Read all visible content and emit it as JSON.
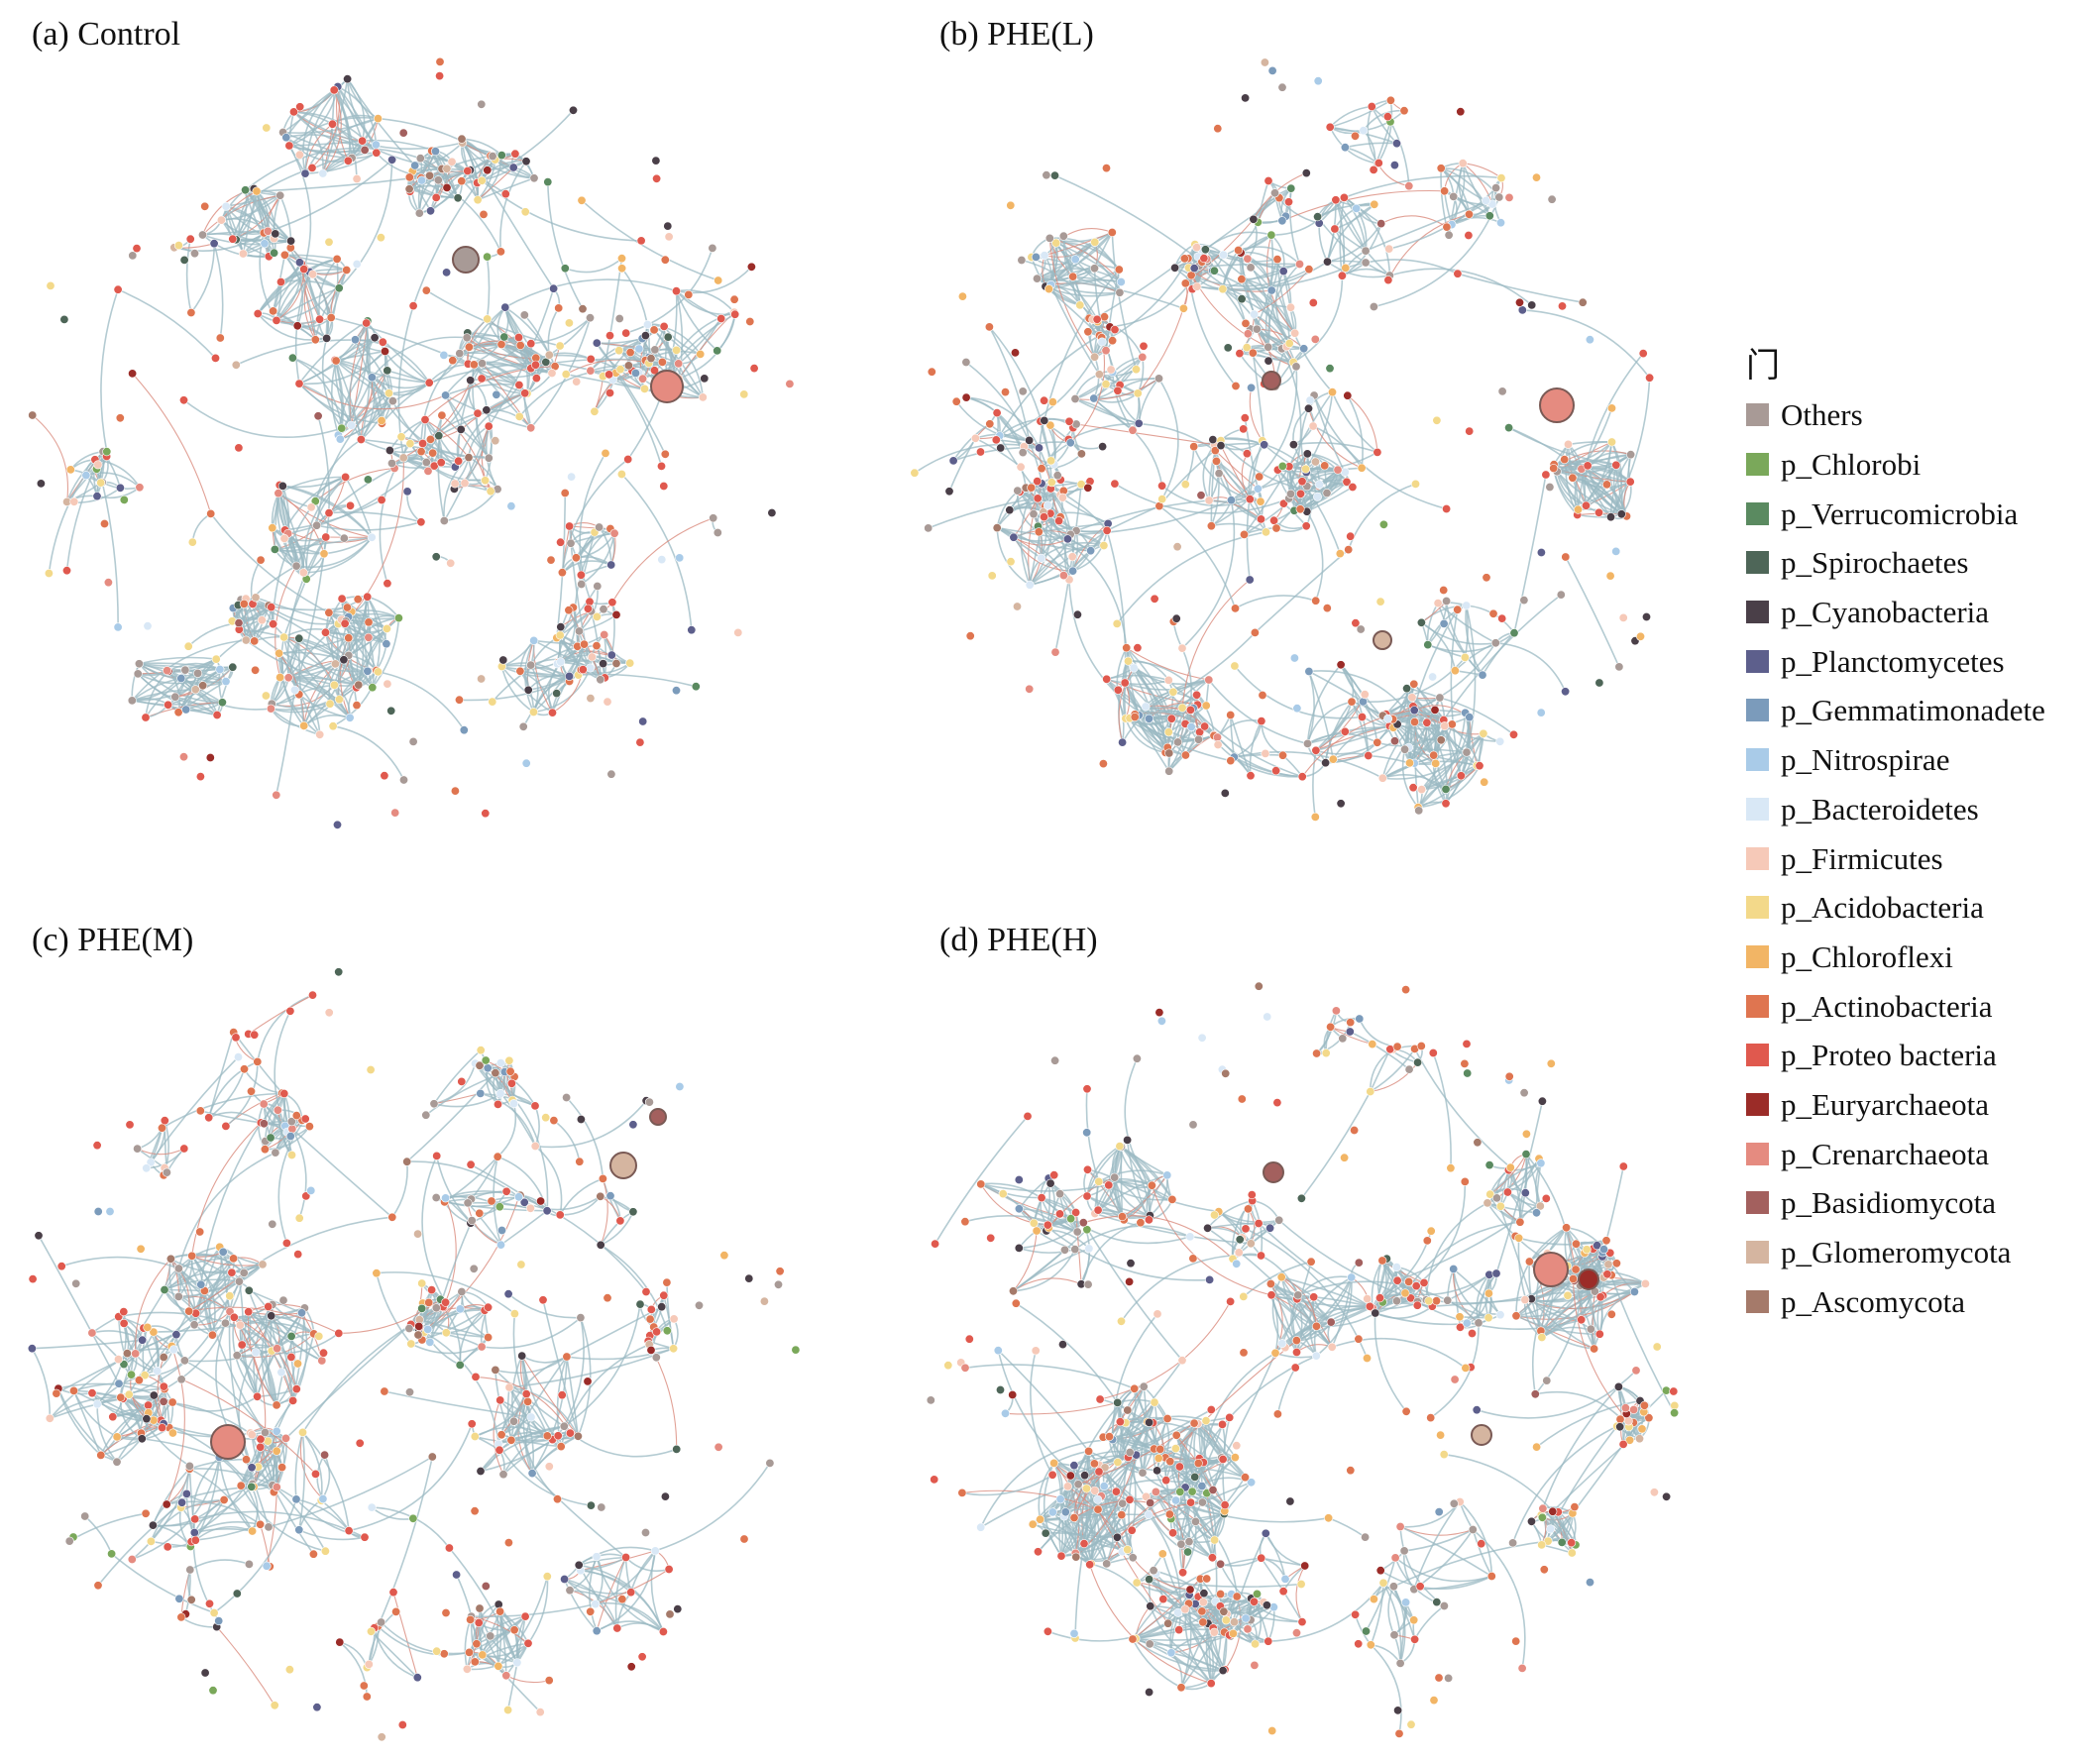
{
  "panels": [
    {
      "id": "a",
      "label": "(a) Control",
      "cx": 0,
      "cy": 0
    },
    {
      "id": "b",
      "label": "(b) PHE(L)"
    },
    {
      "id": "c",
      "label": "(c) PHE(M)"
    },
    {
      "id": "d",
      "label": "(d) PHE(H)"
    }
  ],
  "legend": {
    "title": "门",
    "items": [
      {
        "label": "Others",
        "color": "#a89a96"
      },
      {
        "label": "p_Chlorobi",
        "color": "#7aa85a"
      },
      {
        "label": "p_Verrucomicrobia",
        "color": "#5a8a60"
      },
      {
        "label": "p_Spirochaetes",
        "color": "#4e6658"
      },
      {
        "label": "p_Cyanobacteria",
        "color": "#4a3f48"
      },
      {
        "label": "p_Planctomycetes",
        "color": "#5d5f8c"
      },
      {
        "label": "p_Gemmatimonadete",
        "color": "#7b9bbb"
      },
      {
        "label": "p_Nitrospirae",
        "color": "#a9cbe8"
      },
      {
        "label": "p_Bacteroidetes",
        "color": "#d9e8f6"
      },
      {
        "label": "p_Firmicutes",
        "color": "#f6c9b8"
      },
      {
        "label": "p_Acidobacteria",
        "color": "#f3d98a"
      },
      {
        "label": "p_Chloroflexi",
        "color": "#f2b565"
      },
      {
        "label": "p_Actinobacteria",
        "color": "#df7550"
      },
      {
        "label": "p_Proteo bacteria",
        "color": "#e0594e"
      },
      {
        "label": "p_Euryarchaeota",
        "color": "#9b2c28"
      },
      {
        "label": "p_Crenarchaeota",
        "color": "#e58b80"
      },
      {
        "label": "p_Basidiomycota",
        "color": "#a3605e"
      },
      {
        "label": "p_Glomeromycota",
        "color": "#d5b5a0"
      },
      {
        "label": "p_Ascomycota",
        "color": "#a57a6a"
      }
    ]
  },
  "edge_colors": {
    "positive": "#9bb9c3",
    "negative": "#d98a7c"
  }
}
